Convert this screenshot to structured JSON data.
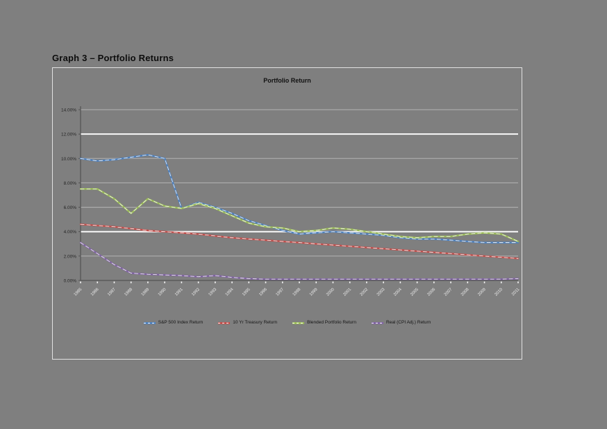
{
  "page": {
    "heading": "Graph 3 – Portfolio Returns"
  },
  "chart": {
    "title": "Portfolio Return"
  },
  "chart_data": {
    "type": "line",
    "title": "Portfolio Return",
    "xlabel": "",
    "ylabel": "",
    "ylim": [
      0,
      14
    ],
    "y_tick_step": 2,
    "y_tick_labels": [
      "14.00%",
      "12.00%",
      "10.00%",
      "8.00%",
      "6.00%",
      "4.00%",
      "2.00%",
      "0.00%"
    ],
    "grid": "horizontal-white-on-gray",
    "highlight_gridline_values": [
      12,
      4
    ],
    "legend_position": "bottom",
    "categories": [
      "1985",
      "1986",
      "1987",
      "1988",
      "1989",
      "1990",
      "1991",
      "1992",
      "1993",
      "1994",
      "1995",
      "1996",
      "1997",
      "1998",
      "1999",
      "2000",
      "2001",
      "2002",
      "2003",
      "2004",
      "2005",
      "2006",
      "2007",
      "2008",
      "2009",
      "2010",
      "2011"
    ],
    "series": [
      {
        "name": "S&P 500 Index Return",
        "color": "#4f81bd",
        "values": [
          10.0,
          9.8,
          9.9,
          10.1,
          10.3,
          10.0,
          5.9,
          6.4,
          6.0,
          5.5,
          4.9,
          4.5,
          4.1,
          3.8,
          3.9,
          4.0,
          3.9,
          3.8,
          3.7,
          3.5,
          3.4,
          3.4,
          3.3,
          3.2,
          3.1,
          3.1,
          3.1
        ]
      },
      {
        "name": "10 Yr Treasury Return",
        "color": "#c0504d",
        "values": [
          4.6,
          4.5,
          4.4,
          4.25,
          4.1,
          4.0,
          3.9,
          3.8,
          3.65,
          3.5,
          3.4,
          3.3,
          3.2,
          3.1,
          3.0,
          2.9,
          2.8,
          2.7,
          2.6,
          2.5,
          2.4,
          2.3,
          2.2,
          2.1,
          2.0,
          1.9,
          1.8
        ]
      },
      {
        "name": "Blended Portfolio Return",
        "color": "#9bbb59",
        "values": [
          7.5,
          7.5,
          6.7,
          5.5,
          6.7,
          6.1,
          5.9,
          6.3,
          5.9,
          5.3,
          4.7,
          4.4,
          4.3,
          4.0,
          4.1,
          4.3,
          4.2,
          4.0,
          3.8,
          3.6,
          3.5,
          3.6,
          3.6,
          3.8,
          3.9,
          3.8,
          3.2
        ]
      },
      {
        "name": "Real (CPI Adj.) Return",
        "color": "#8064a2",
        "values": [
          3.1,
          2.2,
          1.3,
          0.6,
          0.5,
          0.45,
          0.4,
          0.3,
          0.4,
          0.25,
          0.15,
          0.1,
          0.1,
          0.1,
          0.1,
          0.1,
          0.1,
          0.1,
          0.1,
          0.1,
          0.1,
          0.1,
          0.1,
          0.1,
          0.1,
          0.1,
          0.15
        ]
      }
    ]
  }
}
